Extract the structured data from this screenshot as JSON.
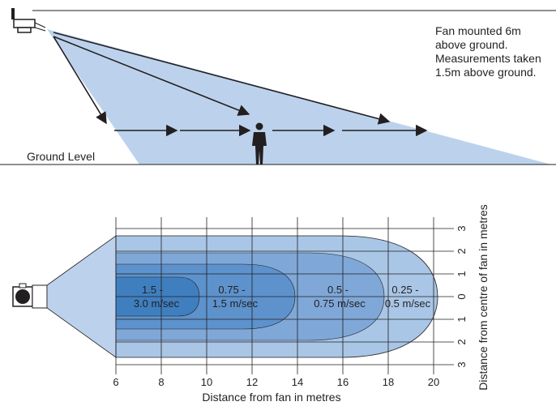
{
  "side_view": {
    "note_lines": [
      "Fan mounted 6m",
      "above ground.",
      "Measurements taken",
      "1.5m above ground."
    ],
    "ground_label": "Ground Level"
  },
  "plan_view": {
    "zones": [
      {
        "line1": "1.5 -",
        "line2": "3.0 m/sec"
      },
      {
        "line1": "0.75 -",
        "line2": "1.5 m/sec"
      },
      {
        "line1": "0.5 -",
        "line2": "0.75 m/sec"
      },
      {
        "line1": "0.25 -",
        "line2": "0.5 m/sec"
      }
    ],
    "x_ticks": [
      "6",
      "8",
      "10",
      "12",
      "14",
      "16",
      "18",
      "20"
    ],
    "y_ticks": [
      "3",
      "2",
      "1",
      "0",
      "1",
      "2",
      "3"
    ],
    "x_axis_label": "Distance from fan in metres",
    "y_axis_label": "Distance from centre of fan in metres"
  },
  "colors": {
    "beam": "#bcd2ec",
    "zone_outer": "#a9c6e6",
    "zone_2": "#7fa8d8",
    "zone_3": "#5d92cc",
    "zone_inner": "#3f7fbf",
    "line": "#231f20"
  }
}
